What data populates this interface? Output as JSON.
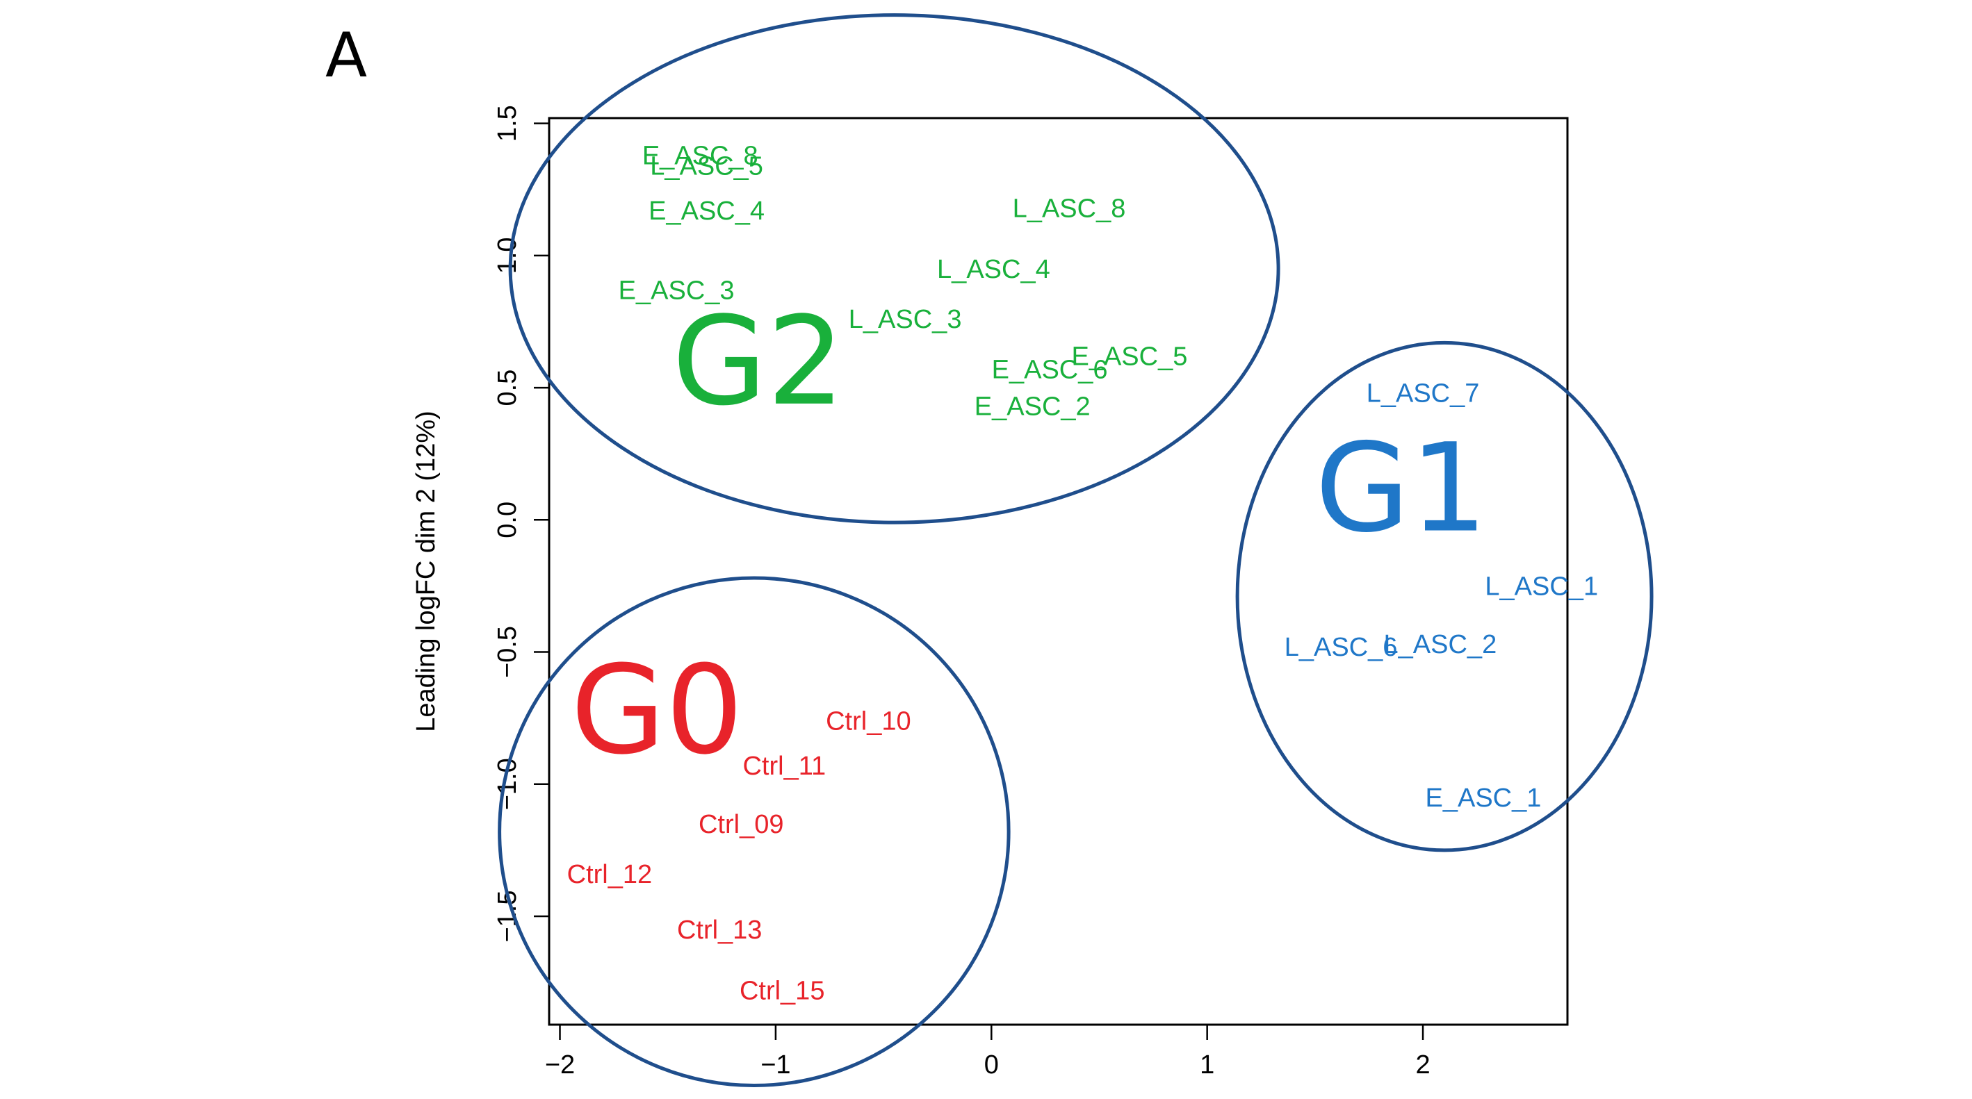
{
  "panel_label": "A",
  "chart_data": {
    "type": "scatter",
    "title": "",
    "xlabel": "",
    "ylabel": "Leading logFC dim 2 (12%)",
    "xlim": [
      -2.05,
      2.67
    ],
    "ylim": [
      -1.91,
      1.52
    ],
    "x_ticks": [
      -2,
      -1,
      0,
      1,
      2
    ],
    "y_ticks": [
      -1.5,
      -1.0,
      -0.5,
      0.0,
      0.5,
      1.0,
      1.5
    ],
    "x_tick_labels": [
      "−2",
      "−1",
      "0",
      "1",
      "2"
    ],
    "y_tick_labels": [
      "−1.5",
      "−1.0",
      "−0.5",
      "0.0",
      "0.5",
      "1.0",
      "1.5"
    ],
    "grid": false,
    "colors": {
      "G0": "#e8232a",
      "G1": "#1f77c8",
      "G2": "#19b03b",
      "ellipse": "#1f4e8c"
    },
    "series": [
      {
        "name": "G2",
        "points": [
          {
            "label": "E_ASC_8",
            "x": -1.35,
            "y": 1.38
          },
          {
            "label": "L_ASC_5",
            "x": -1.32,
            "y": 1.34
          },
          {
            "label": "E_ASC_4",
            "x": -1.32,
            "y": 1.17
          },
          {
            "label": "L_ASC_8",
            "x": 0.36,
            "y": 1.18
          },
          {
            "label": "E_ASC_3",
            "x": -1.46,
            "y": 0.87
          },
          {
            "label": "L_ASC_4",
            "x": 0.01,
            "y": 0.95
          },
          {
            "label": "L_ASC_3",
            "x": -0.4,
            "y": 0.76
          },
          {
            "label": "E_ASC_6",
            "x": 0.27,
            "y": 0.57
          },
          {
            "label": "E_ASC_5",
            "x": 0.64,
            "y": 0.62
          },
          {
            "label": "E_ASC_2",
            "x": 0.19,
            "y": 0.43
          }
        ]
      },
      {
        "name": "G1",
        "points": [
          {
            "label": "L_ASC_7",
            "x": 2.0,
            "y": 0.48
          },
          {
            "label": "L_ASC_1",
            "x": 2.55,
            "y": -0.25
          },
          {
            "label": "L_ASC_6",
            "x": 1.62,
            "y": -0.48
          },
          {
            "label": "L_ASC_2",
            "x": 2.08,
            "y": -0.47
          },
          {
            "label": "E_ASC_1",
            "x": 2.28,
            "y": -1.05
          }
        ]
      },
      {
        "name": "G0",
        "points": [
          {
            "label": "Ctrl_10",
            "x": -0.57,
            "y": -0.76
          },
          {
            "label": "Ctrl_11",
            "x": -0.96,
            "y": -0.93
          },
          {
            "label": "Ctrl_09",
            "x": -1.16,
            "y": -1.15
          },
          {
            "label": "Ctrl_12",
            "x": -1.77,
            "y": -1.34
          },
          {
            "label": "Ctrl_13",
            "x": -1.26,
            "y": -1.55
          },
          {
            "label": "Ctrl_15",
            "x": -0.97,
            "y": -1.78
          }
        ]
      }
    ],
    "annotations": [
      {
        "text": "G2",
        "x": -1.08,
        "y": 0.44,
        "color": "#19b03b"
      },
      {
        "text": "G1",
        "x": 1.9,
        "y": -0.04,
        "color": "#1f77c8"
      },
      {
        "text": "G0",
        "x": -1.55,
        "y": -0.88,
        "color": "#e8232a"
      }
    ],
    "ellipses": [
      {
        "group": "G2",
        "cx": -0.45,
        "cy": 0.95,
        "rx": 1.78,
        "ry": 0.96
      },
      {
        "group": "G1",
        "cx": 2.1,
        "cy": -0.29,
        "rx": 0.96,
        "ry": 0.96
      },
      {
        "group": "G0",
        "cx": -1.1,
        "cy": -1.18,
        "rx": 1.18,
        "ry": 0.96
      }
    ]
  }
}
